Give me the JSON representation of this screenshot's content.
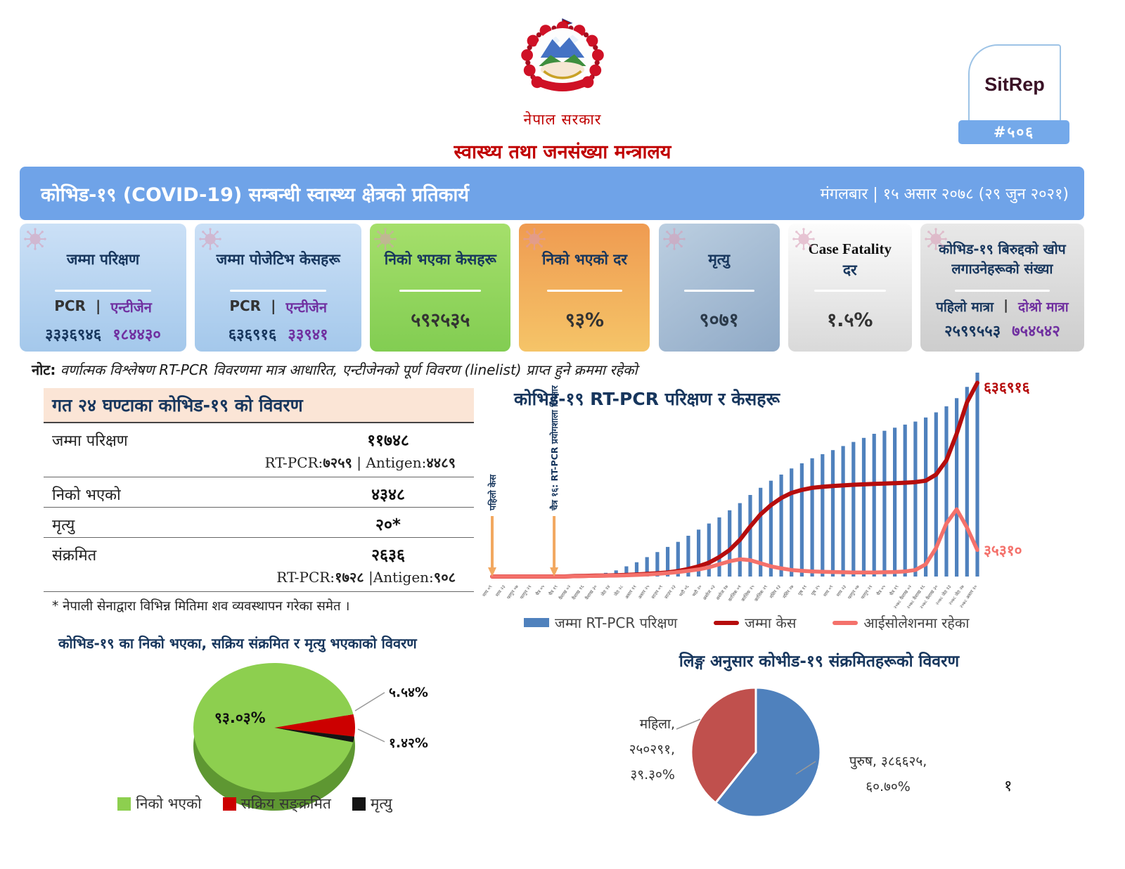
{
  "header": {
    "government": "नेपाल सरकार",
    "ministry": "स्वास्थ्य तथा जनसंख्या मन्त्रालय",
    "sitrep_label": "SitRep",
    "sitrep_number": "#५०६"
  },
  "banner": {
    "title": "कोभिड-१९ (COVID-19) सम्बन्धी स्वास्थ्य क्षेत्रको प्रतिकार्य",
    "date": "मंगलबार | १५ असार २०७८ (२९ जुन २०२१)"
  },
  "cards": [
    {
      "title": "जम्मा परिक्षण",
      "left_label": "PCR",
      "divider": "|",
      "right_label": "एन्टीजेन",
      "left_value": "३३३६९४६",
      "right_value": "१८४४३०"
    },
    {
      "title": "जम्मा पोजेटिभ केसहरू",
      "left_label": "PCR",
      "divider": "|",
      "right_label": "एन्टीजेन",
      "left_value": "६३६९१६",
      "right_value": "३३९४१"
    },
    {
      "title": "निको भएका केसहरू",
      "value": "५९२५३५"
    },
    {
      "title": "निको भएको दर",
      "value": "९३%"
    },
    {
      "title": "मृत्यु",
      "value": "९०७१"
    },
    {
      "title_en": "Case Fatality",
      "title_np": "दर",
      "value": "१.५%"
    },
    {
      "title": "कोभिड-१९ बिरुद्दको खोप लगाउनेहरूको संख्या",
      "left_label": "पहिलो मात्रा",
      "divider": "|",
      "right_label": "दोश्रो मात्रा",
      "left_value": "२५९९५५३",
      "right_value": "७५४५४२"
    }
  ],
  "note": {
    "label": "नोट:",
    "text": "वर्णात्मक विश्लेषण RT-PCR विवरणमा मात्र आधारित, एन्टीजेनको पूर्ण विवरण (linelist) प्राप्त हुने क्रममा रहेको"
  },
  "daily_table": {
    "title": "गत २४ घण्टाका कोभिड-१९ को विवरण",
    "rows": [
      {
        "label": "जम्मा परिक्षण",
        "value": "११७४८",
        "sub": [
          {
            "l": "RT-PCR:",
            "v": "७२५९"
          },
          {
            "l": " | Antigen:",
            "v": "४४८९"
          }
        ]
      },
      {
        "label": "निको भएको",
        "value": "४३४८"
      },
      {
        "label": "मृत्यु",
        "value": "२०*"
      },
      {
        "label": "संक्रमित",
        "value": "२६३६",
        "sub": [
          {
            "l": "RT-PCR:",
            "v": "१७२८"
          },
          {
            "l": " |Antigen:",
            "v": "९०८"
          }
        ]
      }
    ],
    "footnote": "* नेपाली सेनाद्वारा विभिन्न मितिमा शव व्यवस्थापन गरेका समेत ।"
  },
  "chart_data": [
    {
      "type": "combo-bar-line",
      "title": "कोभिड-१९ RT-PCR परिक्षण र केसहरू",
      "axis_note": "y-axis unlabeled in source; series heights are relative (0-1) estimates read from the plot",
      "series": [
        {
          "name": "जम्मा RT-PCR परिक्षण",
          "kind": "bar",
          "color": "#4F81BD",
          "relative_heights": [
            0,
            0,
            0,
            0,
            0,
            0,
            0,
            0,
            0.004,
            0.006,
            0.01,
            0.018,
            0.03,
            0.05,
            0.07,
            0.095,
            0.12,
            0.145,
            0.17,
            0.2,
            0.23,
            0.26,
            0.29,
            0.325,
            0.36,
            0.4,
            0.435,
            0.47,
            0.5,
            0.53,
            0.555,
            0.58,
            0.6,
            0.62,
            0.64,
            0.66,
            0.68,
            0.7,
            0.715,
            0.73,
            0.745,
            0.76,
            0.78,
            0.805,
            0.835,
            0.875,
            0.93,
            1.0
          ]
        },
        {
          "name": "जम्मा केस",
          "kind": "line",
          "color": "#B60D0D",
          "end_label": "६३६९१६",
          "relative_heights": [
            0,
            0,
            0,
            0,
            0,
            0,
            0,
            0,
            0.002,
            0.003,
            0.004,
            0.005,
            0.006,
            0.008,
            0.01,
            0.013,
            0.016,
            0.02,
            0.027,
            0.037,
            0.05,
            0.068,
            0.095,
            0.13,
            0.18,
            0.245,
            0.305,
            0.35,
            0.385,
            0.41,
            0.425,
            0.435,
            0.44,
            0.444,
            0.447,
            0.45,
            0.452,
            0.454,
            0.456,
            0.458,
            0.46,
            0.463,
            0.47,
            0.5,
            0.57,
            0.7,
            0.855,
            0.95
          ]
        },
        {
          "name": "आईसोलेशनमा रहेका",
          "kind": "line",
          "color": "#F4716B",
          "end_label": "३५३१०",
          "relative_heights": [
            0,
            0,
            0,
            0,
            0,
            0,
            0,
            0,
            0.001,
            0.002,
            0.003,
            0.004,
            0.005,
            0.006,
            0.008,
            0.01,
            0.013,
            0.017,
            0.022,
            0.028,
            0.035,
            0.045,
            0.06,
            0.075,
            0.085,
            0.08,
            0.065,
            0.05,
            0.04,
            0.032,
            0.028,
            0.025,
            0.023,
            0.022,
            0.021,
            0.02,
            0.02,
            0.02,
            0.021,
            0.022,
            0.025,
            0.032,
            0.06,
            0.14,
            0.26,
            0.33,
            0.24,
            0.13
          ]
        }
      ],
      "x_labels": [
        "माघ ०९",
        "माघ २३",
        "फागुन ०७",
        "फागुन २१",
        "चैत्र ०५",
        "चैत्र १९",
        "वैशाख ०२",
        "वैशाख १६",
        "वैशाख ३०",
        "जेठ १४",
        "जेठ २८",
        "असार ११",
        "असार २५",
        "साउन ०९",
        "साउन २३",
        "भदौ ०६",
        "भदौ २०",
        "असोज ०३",
        "असोज १७",
        "कात्तिक ०१",
        "कात्तिक १५",
        "कात्तिक २९",
        "मंसिर १३",
        "मंसिर २७",
        "पुष ११",
        "पुष २५",
        "माघ ०९",
        "माघ २३",
        "फागुन ०७",
        "फागुन २१",
        "चैत्र ०५",
        "चैत्र १९",
        "२०७८ वैशाख ०२",
        "२०७८ वैशाख १६",
        "२०७८ वैशाख ३०",
        "२०७८ जेठ १३",
        "२०७८ जेठ २७",
        "२०७८ असार १०"
      ],
      "annotations": [
        {
          "text": "पहिलो केस",
          "x_index": 0
        },
        {
          "text": "चैत्र १६: RT-PCR प्रयोगशाला विस्तार",
          "x_index": 6
        }
      ],
      "legend_position": "bottom"
    },
    {
      "type": "pie",
      "style": "3d",
      "title": "कोभिड-१९ का निको भएका, सक्रिय संक्रमित र मृत्यु भएकाको विवरण",
      "labels": [
        "निको भएको",
        "सक्रिय सङ्क्रमित",
        "मृत्यु"
      ],
      "values_pct": [
        93.03,
        5.54,
        1.42
      ],
      "value_labels": [
        "९३.०३%",
        "५.५४%",
        "१.४२%"
      ],
      "colors": [
        "#8DCF4F",
        "#CC0000",
        "#141414"
      ],
      "side_color": "#5E9732",
      "start_angle_deg": 78,
      "legend_position": "bottom"
    },
    {
      "type": "pie",
      "title": "लिङ्ग अनुसार कोभीड-१९ संक्रमितहरूको विवरण",
      "labels": [
        "पुरुष",
        "महिला"
      ],
      "values_pct": [
        60.7,
        39.3
      ],
      "counts": [
        "३८६६२५",
        "२५०२९१"
      ],
      "male_label_lines": [
        "पुरुष, ३८६६२५,",
        "६०.७०%"
      ],
      "female_label_lines": [
        "महिला,",
        "२५०२९१,",
        "३९.३०%"
      ],
      "colors": [
        "#4F81BD",
        "#C0504D"
      ],
      "start_angle_deg": 0
    }
  ],
  "page_number": "१"
}
